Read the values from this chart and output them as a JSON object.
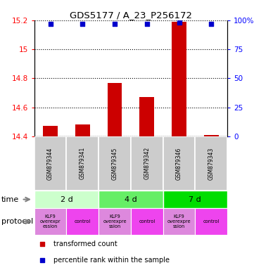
{
  "title": "GDS5177 / A_23_P256172",
  "samples": [
    "GSM879344",
    "GSM879341",
    "GSM879345",
    "GSM879342",
    "GSM879346",
    "GSM879343"
  ],
  "transformed_counts": [
    14.47,
    14.48,
    14.77,
    14.67,
    15.19,
    14.41
  ],
  "percentile_ranks": [
    97,
    97,
    97,
    97,
    98,
    97
  ],
  "ylim_left": [
    14.4,
    15.2
  ],
  "ylim_right": [
    0,
    100
  ],
  "yticks_left": [
    14.4,
    14.6,
    14.8,
    15.0,
    15.2
  ],
  "yticks_right": [
    0,
    25,
    50,
    75,
    100
  ],
  "ytick_labels_left": [
    "14.4",
    "14.6",
    "14.8",
    "15",
    "15.2"
  ],
  "ytick_labels_right": [
    "0",
    "25",
    "50",
    "75",
    "100%"
  ],
  "bar_color": "#cc0000",
  "dot_color": "#0000cc",
  "bar_bottom": 14.4,
  "time_groups": [
    {
      "label": "2 d",
      "start": 0,
      "end": 2,
      "color": "#ccffcc"
    },
    {
      "label": "4 d",
      "start": 2,
      "end": 4,
      "color": "#66ee66"
    },
    {
      "label": "7 d",
      "start": 4,
      "end": 6,
      "color": "#00dd00"
    }
  ],
  "protocol_groups": [
    {
      "label": "KLF9\noverexpr\nession",
      "start": 0,
      "end": 1,
      "color": "#dd88dd"
    },
    {
      "label": "control",
      "start": 1,
      "end": 2,
      "color": "#ee44ee"
    },
    {
      "label": "KLF9\noverexpre\nssion",
      "start": 2,
      "end": 3,
      "color": "#dd88dd"
    },
    {
      "label": "control",
      "start": 3,
      "end": 4,
      "color": "#ee44ee"
    },
    {
      "label": "KLF9\noverexpre\nssion",
      "start": 4,
      "end": 5,
      "color": "#dd88dd"
    },
    {
      "label": "control",
      "start": 5,
      "end": 6,
      "color": "#ee44ee"
    }
  ],
  "legend_bar_label": "transformed count",
  "legend_dot_label": "percentile rank within the sample",
  "sample_bg_color": "#cccccc",
  "figure_width": 3.61,
  "figure_height": 3.84,
  "dpi": 100
}
